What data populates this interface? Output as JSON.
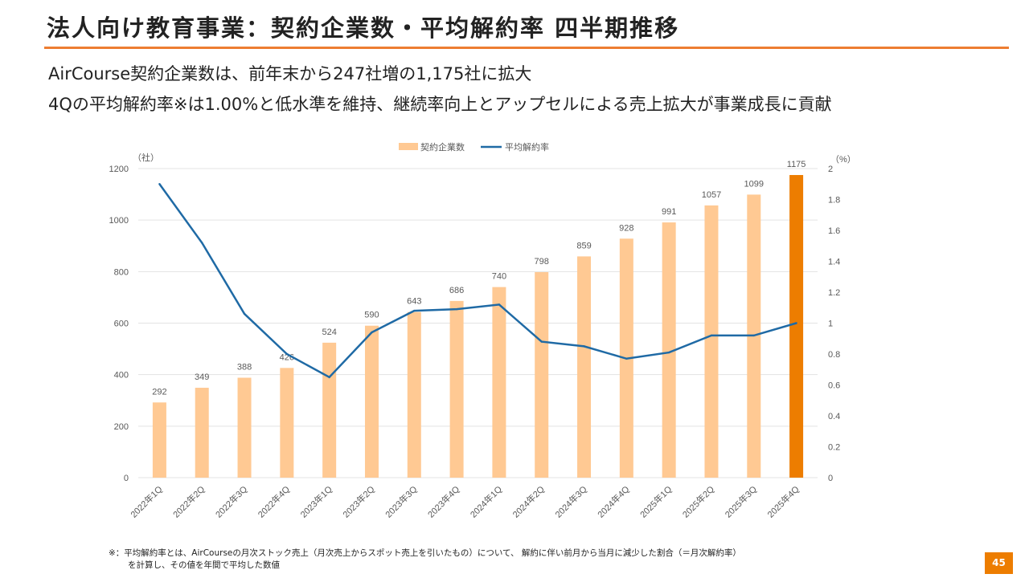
{
  "title": "法人向け教育事業：契約企業数・平均解約率 四半期推移",
  "subtitle1": "AirCourse契約企業数は、前年末から247社増の1,175社に拡大",
  "subtitle2": "4Qの平均解約率※は1.00%と低水準を維持、継続率向上とアップセルによる売上拡大が事業成長に貢献",
  "note1": "※：平均解約率とは、AirCourseの月次ストック売上（月次売上からスポット売上を引いたもの）について、 解約に伴い前月から当月に減少した割合（＝月次解約率）",
  "note2": "を計算し、その値を年間で平均した数値",
  "page_number": "45",
  "colors": {
    "bar": "#ffc993",
    "bar_highlight": "#ed7d00",
    "line": "#1f6aa5"
  },
  "chart_data": {
    "type": "bar+line",
    "categories": [
      "2022年1Q",
      "2022年2Q",
      "2022年3Q",
      "2022年4Q",
      "2023年1Q",
      "2023年2Q",
      "2023年3Q",
      "2023年4Q",
      "2024年1Q",
      "2024年2Q",
      "2024年3Q",
      "2024年4Q",
      "2025年1Q",
      "2025年2Q",
      "2025年3Q",
      "2025年4Q"
    ],
    "series": [
      {
        "name": "契約企業数",
        "type": "bar",
        "axis": "left",
        "values": [
          292,
          349,
          388,
          426,
          524,
          590,
          643,
          686,
          740,
          798,
          859,
          928,
          991,
          1057,
          1099,
          1175
        ]
      },
      {
        "name": "平均解約率",
        "type": "line",
        "axis": "right",
        "values": [
          1.9,
          1.52,
          1.06,
          0.8,
          0.65,
          0.94,
          1.08,
          1.09,
          1.12,
          0.88,
          0.85,
          0.77,
          0.81,
          0.92,
          0.92,
          1.0
        ]
      }
    ],
    "ylabel_left": "（社）",
    "ylabel_right": "（%）",
    "ylim_left": [
      0,
      1200
    ],
    "yticks_left": [
      0,
      200,
      400,
      600,
      800,
      1000,
      1200
    ],
    "ylim_right": [
      0,
      2
    ],
    "yticks_right": [
      "0",
      "0.2",
      "0.4",
      "0.6",
      "0.8",
      "1",
      "1.2",
      "1.4",
      "1.6",
      "1.8",
      "2"
    ],
    "legend": "top-center",
    "grid": true
  }
}
